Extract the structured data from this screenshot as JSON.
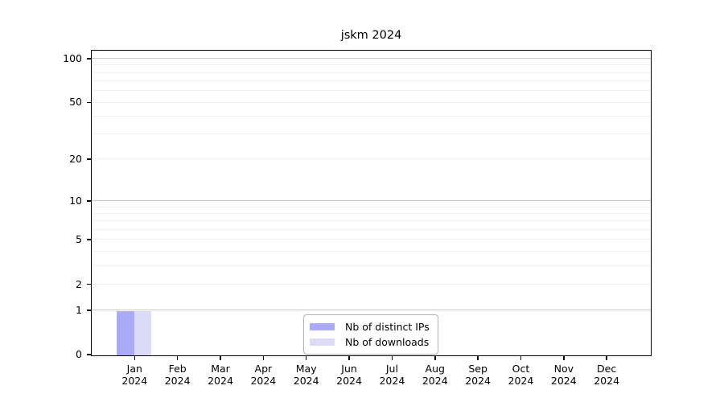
{
  "chart_data": {
    "type": "bar",
    "title": "jskm 2024",
    "categories": [
      "Jan",
      "Feb",
      "Mar",
      "Apr",
      "May",
      "Jun",
      "Jul",
      "Aug",
      "Sep",
      "Oct",
      "Nov",
      "Dec"
    ],
    "category_year": "2024",
    "series": [
      {
        "name": "Nb of distinct IPs",
        "color": "#aaaaf7",
        "values": [
          1,
          0,
          0,
          0,
          0,
          0,
          0,
          0,
          0,
          0,
          0,
          0
        ]
      },
      {
        "name": "Nb of downloads",
        "color": "#dbdbf8",
        "values": [
          1,
          0,
          0,
          0,
          0,
          0,
          0,
          0,
          0,
          0,
          0,
          0
        ]
      }
    ],
    "xlabel": "",
    "ylabel": "",
    "ylim": [
      0,
      100
    ],
    "y_axis": {
      "scale": "log10(value+1)",
      "tick_values": [
        0,
        1,
        2,
        5,
        10,
        20,
        50,
        100
      ],
      "tick_labels": [
        "0",
        "1",
        "2",
        "5",
        "10",
        "20",
        "50",
        "100"
      ],
      "gridlines_major": [
        1,
        10,
        100
      ],
      "gridlines_minor": [
        2,
        3,
        4,
        5,
        6,
        7,
        8,
        9,
        20,
        30,
        40,
        50,
        60,
        70,
        80,
        90
      ]
    },
    "legend": {
      "position": "bottom-center",
      "entries": [
        "Nb of distinct IPs",
        "Nb of downloads"
      ]
    },
    "colors": {
      "bar_distinct_ips": "#aaaaf7",
      "bar_downloads": "#dbdbf8",
      "grid_major": "#c9c9c9",
      "grid_minor": "#f0f0f0",
      "axis": "#000000",
      "background": "#ffffff"
    }
  }
}
